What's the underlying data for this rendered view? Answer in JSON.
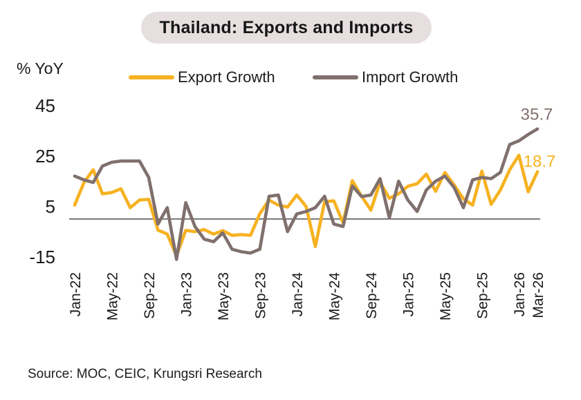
{
  "title": "Thailand: Exports and Imports",
  "y_axis_label": "% YoY",
  "source": "Source: MOC, CEIC, Krungsri Research",
  "colors": {
    "export_yellow": "#F6B221",
    "import_gray": "#80706D",
    "title_bg": "#E7DFDF",
    "axis_line": "#4D4D4D",
    "text": "#1B1B1B",
    "background": "#FFFFFF"
  },
  "chart_data": {
    "type": "line",
    "title": "Thailand: Exports and Imports",
    "ylabel": "% YoY",
    "grid": false,
    "zero_line": true,
    "legend_position": "top",
    "ylim": [
      -20,
      47
    ],
    "y_ticks": [
      45,
      25,
      5,
      -15
    ],
    "x_tick_labels": [
      "Jan-22",
      "May-22",
      "Sep-22",
      "Jan-23",
      "May-23",
      "Sep-23",
      "Jan-24",
      "May-24",
      "Sep-24",
      "Jan-25",
      "May-25",
      "Sep-25",
      "Jan-26",
      "Mar-26"
    ],
    "x_tick_indices": [
      0,
      4,
      8,
      12,
      16,
      20,
      24,
      28,
      32,
      36,
      40,
      44,
      48,
      50
    ],
    "x": [
      "Jan-22",
      "Feb-22",
      "Mar-22",
      "Apr-22",
      "May-22",
      "Jun-22",
      "Jul-22",
      "Aug-22",
      "Sep-22",
      "Oct-22",
      "Nov-22",
      "Dec-22",
      "Jan-23",
      "Feb-23",
      "Mar-23",
      "Apr-23",
      "May-23",
      "Jun-23",
      "Jul-23",
      "Aug-23",
      "Sep-23",
      "Oct-23",
      "Nov-23",
      "Dec-23",
      "Jan-24",
      "Feb-24",
      "Mar-24",
      "Apr-24",
      "May-24",
      "Jun-24",
      "Jul-24",
      "Aug-24",
      "Sep-24",
      "Oct-24",
      "Nov-24",
      "Dec-24",
      "Jan-25",
      "Feb-25",
      "Mar-25",
      "Apr-25",
      "May-25",
      "Jun-25",
      "Jul-25",
      "Aug-25",
      "Sep-25",
      "Oct-25",
      "Nov-25",
      "Dec-25",
      "Jan-26",
      "Feb-26",
      "Mar-26"
    ],
    "series": [
      {
        "name": "Export Growth",
        "color": "#F6B221",
        "end_label": "18.7",
        "values": [
          5.5,
          14.5,
          19.5,
          10,
          10.5,
          12,
          4.5,
          7.5,
          7.8,
          -4.4,
          -6,
          -14.6,
          -4.5,
          -5,
          -4.2,
          -6,
          -4.6,
          -6.5,
          -6.2,
          -6.5,
          2.1,
          7.5,
          5.5,
          4.7,
          9.5,
          5,
          -10.9,
          6.8,
          7.2,
          -1.5,
          15.2,
          9,
          3.5,
          14.6,
          8.2,
          10,
          13,
          14,
          17.8,
          11,
          18.4,
          13.5,
          8,
          5.5,
          19,
          5.8,
          11.5,
          19.5,
          25.3,
          10.8,
          18.7
        ]
      },
      {
        "name": "Import Growth",
        "color": "#80706D",
        "end_label": "35.7",
        "values": [
          17,
          15.5,
          14.5,
          21,
          22.5,
          23,
          23,
          23,
          16.5,
          -2,
          4.5,
          -16,
          6.5,
          -3,
          -8,
          -9,
          -5.5,
          -12,
          -13,
          -13.5,
          -12,
          9,
          9.5,
          -5,
          2,
          3,
          4.5,
          9,
          -2,
          -3,
          13.1,
          8.9,
          9.5,
          16,
          0.5,
          15,
          7.5,
          3,
          11.5,
          15,
          17,
          12.5,
          4.5,
          15.5,
          16.5,
          16,
          18.5,
          29.5,
          31,
          33.5,
          35.7
        ]
      }
    ]
  }
}
